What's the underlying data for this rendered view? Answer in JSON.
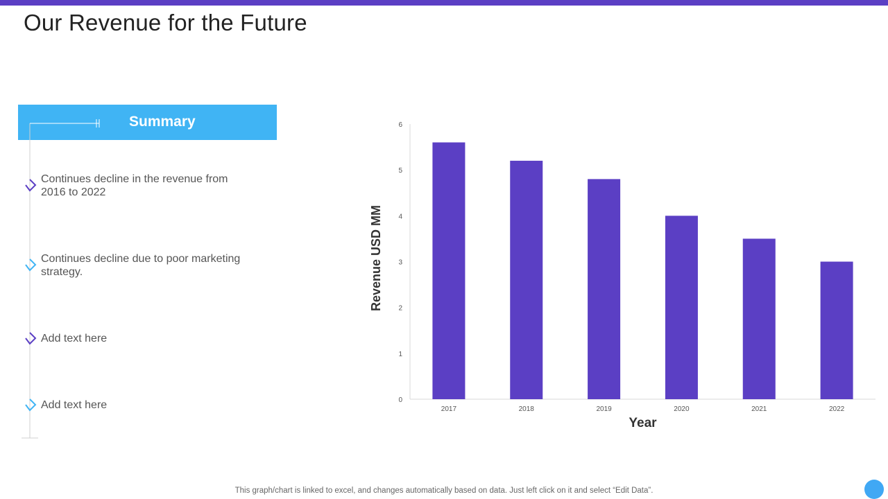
{
  "slide": {
    "title": "Our Revenue for the Future",
    "footer_note": "This graph/chart is linked to excel, and changes automatically based on data. Just left click on it and select “Edit Data”."
  },
  "summary": {
    "title": "Summary",
    "items": [
      {
        "text": "Continues decline in the revenue from 2016 to 2022",
        "marker_color": "#5b3fc4"
      },
      {
        "text": "Continues decline due to poor marketing strategy.",
        "marker_color": "#40b4f4"
      },
      {
        "text": "Add text here",
        "marker_color": "#5b3fc4"
      },
      {
        "text": "Add text here",
        "marker_color": "#40b4f4"
      }
    ]
  },
  "colors": {
    "accent_purple": "#5b3fc4",
    "accent_blue": "#40b4f4",
    "bar_color": "#5b3fc4"
  },
  "chart_data": {
    "type": "bar",
    "categories": [
      "2017",
      "2018",
      "2019",
      "2020",
      "2021",
      "2022"
    ],
    "values": [
      5.6,
      5.2,
      4.8,
      4.0,
      3.5,
      3.0
    ],
    "title": "",
    "xlabel": "Year",
    "ylabel": "Revenue USD MM",
    "ylim": [
      0,
      6
    ],
    "yticks": [
      0,
      1,
      2,
      3,
      4,
      5,
      6
    ],
    "grid": false
  }
}
